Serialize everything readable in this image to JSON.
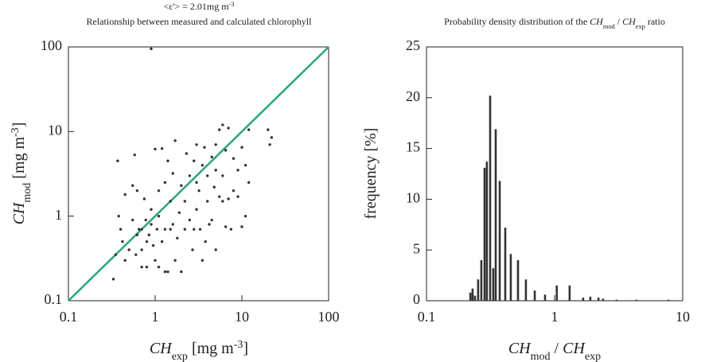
{
  "chart_data": [
    {
      "type": "scatter",
      "title_parts": [
        "<ε'> = 2.01mg m",
        "-3"
      ],
      "subtitle": "Relationship between measured and calculated chlorophyll",
      "xlabel_parts": [
        "CH",
        "exp",
        " [mg m",
        "-3",
        "]"
      ],
      "ylabel_parts": [
        "CH",
        "mod",
        " [mg m",
        "-3",
        "]"
      ],
      "x": [
        0.9,
        0.33,
        0.35,
        0.37,
        0.38,
        0.4,
        0.42,
        0.45,
        0.5,
        0.55,
        0.58,
        0.6,
        0.62,
        0.62,
        0.65,
        0.7,
        0.7,
        0.75,
        0.78,
        0.8,
        0.8,
        0.85,
        0.9,
        0.9,
        0.95,
        1.0,
        1.0,
        1.05,
        1.1,
        1.1,
        1.2,
        1.2,
        1.3,
        1.3,
        1.4,
        1.4,
        1.5,
        1.5,
        1.6,
        1.7,
        1.7,
        1.8,
        1.9,
        2.0,
        2.0,
        2.2,
        2.3,
        2.5,
        2.5,
        2.7,
        2.8,
        3.0,
        3.0,
        3.2,
        3.3,
        3.5,
        3.7,
        3.8,
        4.0,
        4.0,
        4.2,
        4.5,
        4.8,
        5.0,
        5.0,
        5.5,
        5.5,
        6.0,
        6.0,
        6.5,
        6.5,
        7,
        7,
        7.5,
        8,
        8,
        9,
        9,
        10,
        10,
        11,
        11,
        12,
        12,
        20,
        21,
        22,
        3.5,
        0.45,
        0.55,
        1.3,
        1.6,
        2.2,
        2.8,
        4.5,
        6,
        1.1,
        0.7,
        5.0,
        3.0
      ],
      "y": [
        95,
        0.18,
        0.35,
        4.5,
        1.0,
        0.7,
        0.5,
        0.3,
        0.4,
        2.3,
        5.3,
        0.35,
        0.6,
        2.0,
        0.7,
        0.4,
        0.7,
        1.6,
        0.9,
        0.25,
        0.5,
        0.6,
        0.8,
        1.2,
        0.45,
        0.3,
        6.2,
        0.7,
        0.25,
        1.0,
        6.3,
        0.5,
        0.7,
        2.5,
        0.22,
        4.5,
        0.7,
        1.5,
        3.2,
        7.8,
        0.3,
        0.55,
        1.1,
        0.22,
        2.3,
        0.7,
        5.5,
        0.9,
        3.0,
        0.4,
        0.7,
        1.2,
        7.0,
        2.0,
        0.7,
        4.0,
        6.5,
        0.5,
        1.5,
        3.0,
        0.8,
        5.0,
        2.2,
        0.4,
        7.0,
        10.5,
        1.7,
        12,
        3.0,
        0.75,
        6.0,
        1.6,
        11,
        0.7,
        4.8,
        2.0,
        1.7,
        3.5,
        0.75,
        6.5,
        1.0,
        4.0,
        10.5,
        2.5,
        10.5,
        7,
        8.5,
        0.3,
        1.8,
        0.9,
        0.22,
        0.8,
        1.5,
        4.5,
        0.9,
        1.5,
        2.0,
        0.25,
        3.5,
        2.5
      ],
      "color": "#333333",
      "identity_line": true,
      "line_color": "#2aa57e",
      "log_x": true,
      "log_y": true,
      "xlim": [
        0.1,
        100
      ],
      "ylim": [
        0.1,
        100
      ],
      "xticks": [
        0.1,
        1,
        10,
        100
      ],
      "yticks": [
        0.1,
        1,
        10,
        100
      ]
    },
    {
      "type": "bar",
      "title_parts": [
        "Probability density distribution of the ",
        "CH",
        "mod",
        " / ",
        "CH",
        "exp",
        " ratio"
      ],
      "xlabel_parts": [
        "CH",
        "mod",
        " / ",
        "CH",
        "exp"
      ],
      "ylabel": "frequency [%]",
      "x": [
        0.22,
        0.229,
        0.239,
        0.253,
        0.268,
        0.284,
        0.296,
        0.314,
        0.332,
        0.347,
        0.373,
        0.412,
        0.455,
        0.518,
        0.597,
        0.7,
        0.842,
        1.04,
        1.31,
        1.67,
        1.9,
        2.2,
        2.39,
        3.05,
        4.36,
        7.73
      ],
      "values": [
        0.8,
        1.2,
        0.5,
        2.1,
        4.0,
        13.1,
        13.7,
        20.2,
        3.2,
        16.9,
        11.8,
        7.2,
        4.6,
        4.0,
        2.1,
        1.0,
        0.6,
        1.5,
        1.5,
        0.3,
        0.4,
        0.3,
        0.2,
        0.1,
        0.1,
        0.1
      ],
      "color": "#333333",
      "log_x": true,
      "xlim": [
        0.1,
        10
      ],
      "ylim": [
        0,
        25
      ],
      "xticks": [
        0.1,
        1,
        10
      ],
      "yticks": [
        0,
        5,
        10,
        15,
        20,
        25
      ]
    }
  ]
}
